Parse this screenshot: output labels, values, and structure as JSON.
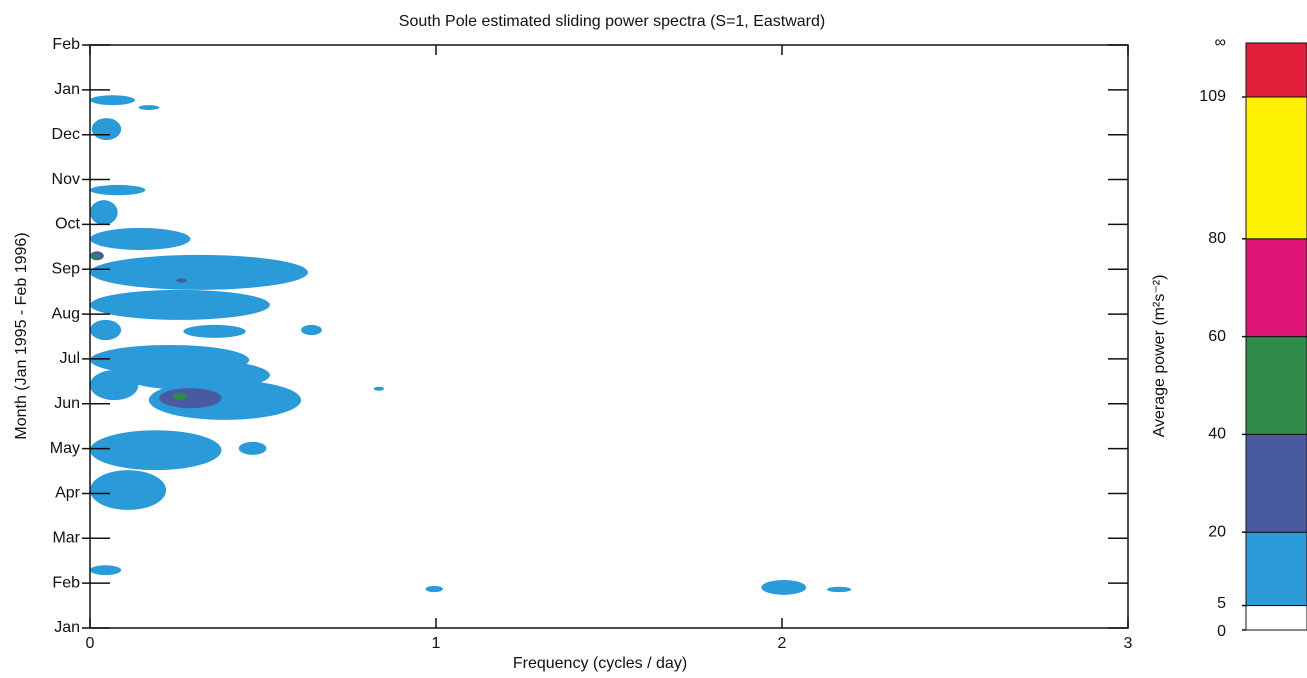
{
  "chart_data": {
    "type": "contour",
    "title": "South Pole estimated sliding power spectra (S=1, Eastward)",
    "x_label": "Frequency (cycles / day)",
    "y_label": "Month (Jan 1995 - Feb 1996)",
    "xlim": [
      0,
      3
    ],
    "xticks": [
      0,
      1,
      2,
      3
    ],
    "ylim": [
      0,
      13
    ],
    "yticks": [
      {
        "value": 0,
        "label": "Jan"
      },
      {
        "value": 1,
        "label": "Feb"
      },
      {
        "value": 2,
        "label": "Mar"
      },
      {
        "value": 3,
        "label": "Apr"
      },
      {
        "value": 4,
        "label": "May"
      },
      {
        "value": 5,
        "label": "Jun"
      },
      {
        "value": 6,
        "label": "Jul"
      },
      {
        "value": 7,
        "label": "Aug"
      },
      {
        "value": 8,
        "label": "Sep"
      },
      {
        "value": 9,
        "label": "Oct"
      },
      {
        "value": 10,
        "label": "Nov"
      },
      {
        "value": 11,
        "label": "Dec"
      },
      {
        "value": 12,
        "label": "Jan"
      },
      {
        "value": 13,
        "label": "Feb"
      }
    ],
    "regions": [
      {
        "x": [
          0,
          0.13
        ],
        "y": [
          11.66,
          11.88
        ],
        "value": 10
      },
      {
        "x": [
          0.14,
          0.2
        ],
        "y": [
          11.55,
          11.66
        ],
        "value": 10
      },
      {
        "x": [
          0.005,
          0.09
        ],
        "y": [
          10.88,
          11.37
        ],
        "value": 10
      },
      {
        "x": [
          0,
          0.16
        ],
        "y": [
          9.65,
          9.88
        ],
        "value": 10
      },
      {
        "x": [
          0,
          0.08
        ],
        "y": [
          8.99,
          9.54
        ],
        "value": 10
      },
      {
        "x": [
          0,
          0.29
        ],
        "y": [
          8.43,
          8.92
        ],
        "value": 10
      },
      {
        "x": [
          0,
          0.63
        ],
        "y": [
          7.54,
          8.32
        ],
        "value": 10
      },
      {
        "x": [
          0,
          0.52
        ],
        "y": [
          6.87,
          7.54
        ],
        "value": 10
      },
      {
        "x": [
          0,
          0.09
        ],
        "y": [
          6.42,
          6.87
        ],
        "value": 10
      },
      {
        "x": [
          0.27,
          0.45
        ],
        "y": [
          6.47,
          6.76
        ],
        "value": 10
      },
      {
        "x": [
          0.61,
          0.67
        ],
        "y": [
          6.53,
          6.76
        ],
        "value": 10
      },
      {
        "x": [
          0,
          0.46
        ],
        "y": [
          5.64,
          6.31
        ],
        "value": 10
      },
      {
        "x": [
          0.09,
          0.52
        ],
        "y": [
          5.3,
          5.98
        ],
        "value": 10
      },
      {
        "x": [
          0,
          0.14
        ],
        "y": [
          5.08,
          5.75
        ],
        "value": 10
      },
      {
        "x": [
          0.17,
          0.61
        ],
        "y": [
          4.64,
          5.53
        ],
        "value": 10
      },
      {
        "x": [
          0.82,
          0.85
        ],
        "y": [
          5.3,
          5.37
        ],
        "value": 10
      },
      {
        "x": [
          0.43,
          0.51
        ],
        "y": [
          3.86,
          4.15
        ],
        "value": 10
      },
      {
        "x": [
          0,
          0.38
        ],
        "y": [
          3.52,
          4.41
        ],
        "value": 10
      },
      {
        "x": [
          0,
          0.22
        ],
        "y": [
          2.63,
          3.52
        ],
        "value": 10
      },
      {
        "x": [
          0,
          0.09
        ],
        "y": [
          1.18,
          1.4
        ],
        "value": 10
      },
      {
        "x": [
          0.97,
          1.02
        ],
        "y": [
          0.8,
          0.94
        ],
        "value": 10
      },
      {
        "x": [
          1.94,
          2.07
        ],
        "y": [
          0.74,
          1.07
        ],
        "value": 10
      },
      {
        "x": [
          2.13,
          2.2
        ],
        "y": [
          0.8,
          0.92
        ],
        "value": 10
      },
      {
        "x": [
          0.25,
          0.28
        ],
        "y": [
          7.7,
          7.8
        ],
        "value": 30
      },
      {
        "x": [
          0.2,
          0.38
        ],
        "y": [
          4.9,
          5.35
        ],
        "value": 30
      },
      {
        "x": [
          0,
          0.04
        ],
        "y": [
          8.2,
          8.4
        ],
        "value": 30
      },
      {
        "x": [
          0.24,
          0.28
        ],
        "y": [
          5.08,
          5.24
        ],
        "value": 50
      },
      {
        "x": [
          0,
          0.03
        ],
        "y": [
          8.24,
          8.34
        ],
        "value": 50
      }
    ],
    "colorbar": {
      "label": "Average power (m²s⁻²)",
      "lim": [
        0,
        109
      ],
      "ticks": [
        {
          "value": 0,
          "label": "0"
        },
        {
          "value": 5,
          "label": "5"
        },
        {
          "value": 20,
          "label": "20"
        },
        {
          "value": 40,
          "label": "40"
        },
        {
          "value": 60,
          "label": "60"
        },
        {
          "value": 80,
          "label": "80"
        },
        {
          "value": 109,
          "label": "109"
        },
        {
          "value": null,
          "label": "∞"
        }
      ],
      "levels": [
        {
          "from": 0,
          "to": 5,
          "color": "#ffffff"
        },
        {
          "from": 5,
          "to": 20,
          "color": "#2a9ad8"
        },
        {
          "from": 20,
          "to": 40,
          "color": "#4a5aa0"
        },
        {
          "from": 40,
          "to": 60,
          "color": "#2e8b4a"
        },
        {
          "from": 60,
          "to": 80,
          "color": "#e0157a"
        },
        {
          "from": 80,
          "to": 109,
          "color": "#fff200"
        },
        {
          "from": 109,
          "to": null,
          "color": "#e0203a"
        }
      ]
    }
  }
}
